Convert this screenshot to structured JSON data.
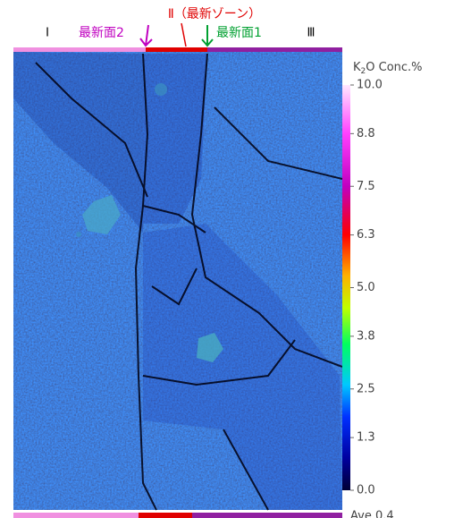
{
  "header": {
    "zone1": "Ⅰ",
    "surface2": "最新面2",
    "zone2": "Ⅱ（最新ゾーン）",
    "surface1": "最新面1",
    "zone3": "Ⅲ"
  },
  "colorbar": {
    "title": [
      "K",
      "2",
      "O Conc.%"
    ],
    "lim": [
      0,
      10
    ],
    "ticks": [
      {
        "value": 10,
        "label": "10.0"
      },
      8.8,
      7.5,
      6.3,
      {
        "value": 5,
        "label": "5.0"
      },
      3.8,
      2.5,
      1.3,
      {
        "value": 0,
        "label": "0.0"
      }
    ],
    "average": "Ave 0.4"
  }
}
